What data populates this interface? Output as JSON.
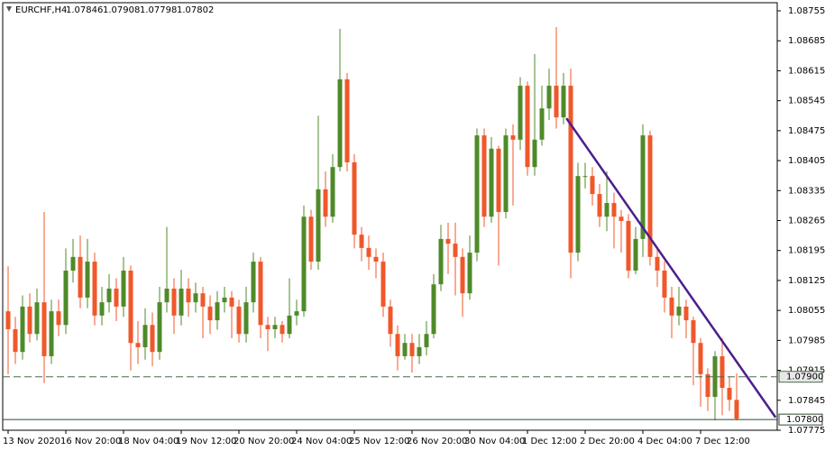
{
  "chart_data": {
    "type": "candlestick",
    "header": {
      "symbol": "EURCHF,H4",
      "values": [
        1.07846,
        1.07908,
        1.07798,
        1.07802
      ]
    },
    "up_color": "#4f8a2a",
    "down_color": "#f0572a",
    "categories": [
      "13 Nov 2020",
      null,
      null,
      null,
      null,
      null,
      null,
      null,
      "16 Nov 20:00",
      null,
      null,
      null,
      null,
      null,
      null,
      null,
      "18 Nov 04:00",
      null,
      null,
      null,
      null,
      null,
      null,
      null,
      "19 Nov 12:00",
      null,
      null,
      null,
      null,
      null,
      null,
      null,
      "20 Nov 20:00",
      null,
      null,
      null,
      null,
      null,
      null,
      null,
      "24 Nov 04:00",
      null,
      null,
      null,
      null,
      null,
      null,
      null,
      "25 Nov 12:00",
      null,
      null,
      null,
      null,
      null,
      null,
      null,
      "26 Nov 20:00",
      null,
      null,
      null,
      null,
      null,
      null,
      null,
      "30 Nov 04:00",
      null,
      null,
      null,
      null,
      null,
      null,
      null,
      "1 Dec 12:00",
      null,
      null,
      null,
      null,
      null,
      null,
      null,
      "2 Dec 20:00",
      null,
      null,
      null,
      null,
      null,
      null,
      null,
      "4 Dec 04:00",
      null,
      null,
      null,
      null,
      null,
      null,
      null,
      "7 Dec 12:00",
      null,
      null,
      null,
      null,
      null
    ],
    "open": [
      1.08053,
      1.08011,
      1.07958,
      1.08064,
      1.08,
      1.08074,
      1.07948,
      1.08053,
      1.08021,
      1.08148,
      1.0818,
      1.08085,
      1.08169,
      1.08043,
      1.08074,
      1.08106,
      1.08064,
      1.08148,
      1.07979,
      1.07969,
      1.08021,
      1.07958,
      1.08074,
      1.08106,
      1.08043,
      1.08106,
      1.08074,
      1.08095,
      1.08064,
      1.08032,
      1.08074,
      1.08085,
      1.08064,
      1.08,
      1.08074,
      1.08169,
      1.08021,
      1.08011,
      1.08021,
      1.08,
      1.08043,
      1.08053,
      1.08274,
      1.08169,
      1.08338,
      1.08274,
      1.0839,
      1.08595,
      1.08401,
      1.08232,
      1.08201,
      1.0818,
      1.08169,
      1.08064,
      1.08,
      1.07948,
      1.07979,
      1.07948,
      1.07969,
      1.08,
      1.08116,
      1.08222,
      1.08211,
      1.0818,
      1.08095,
      1.0819,
      1.08464,
      1.08274,
      1.08433,
      1.08285,
      1.08464,
      1.08454,
      1.0858,
      1.0839,
      1.08454,
      1.08527,
      1.0858,
      1.08506,
      1.0858,
      1.0819,
      1.08369,
      1.08369,
      1.08327,
      1.08274,
      1.08306,
      1.08274,
      1.08264,
      1.08148,
      1.08222,
      1.08464,
      1.0818,
      1.08148,
      1.08085,
      1.08043,
      1.08064,
      1.08032,
      1.07979,
      1.07906,
      1.07853,
      1.07948,
      1.07874,
      1.07846
    ],
    "high": [
      1.08158,
      1.0804,
      1.0809,
      1.08095,
      1.08106,
      1.08285,
      1.0808,
      1.0808,
      1.082,
      1.08222,
      1.0823,
      1.08222,
      1.0819,
      1.0811,
      1.0814,
      1.0813,
      1.0818,
      1.0816,
      1.0803,
      1.0806,
      1.0805,
      1.0811,
      1.0825,
      1.0813,
      1.0815,
      1.0813,
      1.0812,
      1.0811,
      1.0809,
      1.081,
      1.0811,
      1.081,
      1.0808,
      1.0811,
      1.0819,
      1.0818,
      1.0804,
      1.0804,
      1.0803,
      1.0813,
      1.0808,
      1.083,
      1.0829,
      1.0851,
      1.0838,
      1.0842,
      1.08713,
      1.0861,
      1.0842,
      1.0825,
      1.0823,
      1.082,
      1.0819,
      1.0808,
      1.0802,
      1.08,
      1.08,
      1.08,
      1.0803,
      1.0814,
      1.08255,
      1.0826,
      1.0826,
      1.082,
      1.0823,
      1.0848,
      1.0848,
      1.0846,
      1.0844,
      1.0848,
      1.0849,
      1.086,
      1.0859,
      1.08654,
      1.0858,
      1.0862,
      1.08717,
      1.0861,
      1.0862,
      1.084,
      1.084,
      1.0839,
      1.0835,
      1.0838,
      1.0833,
      1.0829,
      1.0828,
      1.0825,
      1.0849,
      1.08475,
      1.082,
      1.0817,
      1.0811,
      1.0811,
      1.0808,
      1.0804,
      1.0799,
      1.0792,
      1.0796,
      1.0799,
      1.079,
      1.07908
    ],
    "low": [
      1.07906,
      1.0793,
      1.0794,
      1.0798,
      1.07985,
      1.07885,
      1.0793,
      1.07995,
      1.08,
      1.0812,
      1.0806,
      1.0806,
      1.0802,
      1.0802,
      1.0805,
      1.0803,
      1.0804,
      1.07915,
      1.0793,
      1.0794,
      1.07925,
      1.0794,
      1.0805,
      1.08,
      1.0802,
      1.0804,
      1.0805,
      1.0799,
      1.08,
      1.0801,
      1.0805,
      1.0799,
      1.0798,
      1.0798,
      1.0805,
      1.0799,
      1.0796,
      1.0799,
      1.0798,
      1.0799,
      1.0802,
      1.0804,
      1.0815,
      1.0815,
      1.0825,
      1.0826,
      1.0838,
      1.0838,
      1.082,
      1.0817,
      1.0815,
      1.0813,
      1.0804,
      1.0797,
      1.07915,
      1.0794,
      1.0791,
      1.0793,
      1.0795,
      1.0799,
      1.081,
      1.0814,
      1.0809,
      1.0804,
      1.0808,
      1.0817,
      1.0825,
      1.0826,
      1.0816,
      1.0827,
      1.083,
      1.0843,
      1.0837,
      1.0837,
      1.0844,
      1.085,
      1.0848,
      1.0849,
      1.0813,
      1.0817,
      1.0834,
      1.083,
      1.0825,
      1.0824,
      1.082,
      1.0819,
      1.0813,
      1.0814,
      1.0818,
      1.0816,
      1.0811,
      1.0805,
      1.0799,
      1.0802,
      1.0799,
      1.0788,
      1.0783,
      1.0782,
      1.07798,
      1.0781,
      1.0782,
      1.07798
    ],
    "close": [
      1.08011,
      1.07958,
      1.08064,
      1.08,
      1.08074,
      1.07948,
      1.08053,
      1.08021,
      1.08148,
      1.0818,
      1.08085,
      1.08169,
      1.08043,
      1.08074,
      1.08106,
      1.08064,
      1.08148,
      1.07979,
      1.07969,
      1.08021,
      1.07958,
      1.08074,
      1.08106,
      1.08043,
      1.08106,
      1.08074,
      1.08095,
      1.08064,
      1.08032,
      1.08074,
      1.08085,
      1.08064,
      1.08,
      1.08074,
      1.08169,
      1.08021,
      1.08011,
      1.08021,
      1.08,
      1.08043,
      1.08053,
      1.08274,
      1.08169,
      1.08338,
      1.08274,
      1.0839,
      1.08595,
      1.08401,
      1.08232,
      1.08201,
      1.0818,
      1.08169,
      1.08064,
      1.08,
      1.07948,
      1.07979,
      1.07948,
      1.07969,
      1.08,
      1.08116,
      1.08222,
      1.08211,
      1.0818,
      1.08095,
      1.0819,
      1.08464,
      1.08274,
      1.08433,
      1.08285,
      1.08464,
      1.08454,
      1.0858,
      1.0839,
      1.08454,
      1.08527,
      1.0858,
      1.08506,
      1.0858,
      1.0819,
      1.08369,
      1.08369,
      1.08327,
      1.08274,
      1.08306,
      1.08274,
      1.08264,
      1.08148,
      1.08222,
      1.08464,
      1.0818,
      1.08148,
      1.08085,
      1.08043,
      1.08064,
      1.08032,
      1.07979,
      1.07906,
      1.07853,
      1.07948,
      1.07874,
      1.07846,
      1.07802
    ],
    "ylim": [
      1.07775,
      1.08774
    ],
    "yticks": [
      1.08755,
      1.08685,
      1.08615,
      1.08545,
      1.08475,
      1.08405,
      1.08335,
      1.08265,
      1.08195,
      1.08125,
      1.08055,
      1.07985,
      1.07915,
      1.07845,
      1.07775
    ],
    "hlines": [
      {
        "value": 1.079,
        "label": "1.07900",
        "style": "dashed",
        "color": "#4a6a4a"
      },
      {
        "value": 1.078,
        "label": "1.07800",
        "style": "solid",
        "color": "#2e4a2e"
      }
    ],
    "trendline": {
      "from": [
        77.4,
        1.08504
      ],
      "to": [
        106.4,
        1.07805
      ],
      "color": "#4b1f8c"
    }
  }
}
